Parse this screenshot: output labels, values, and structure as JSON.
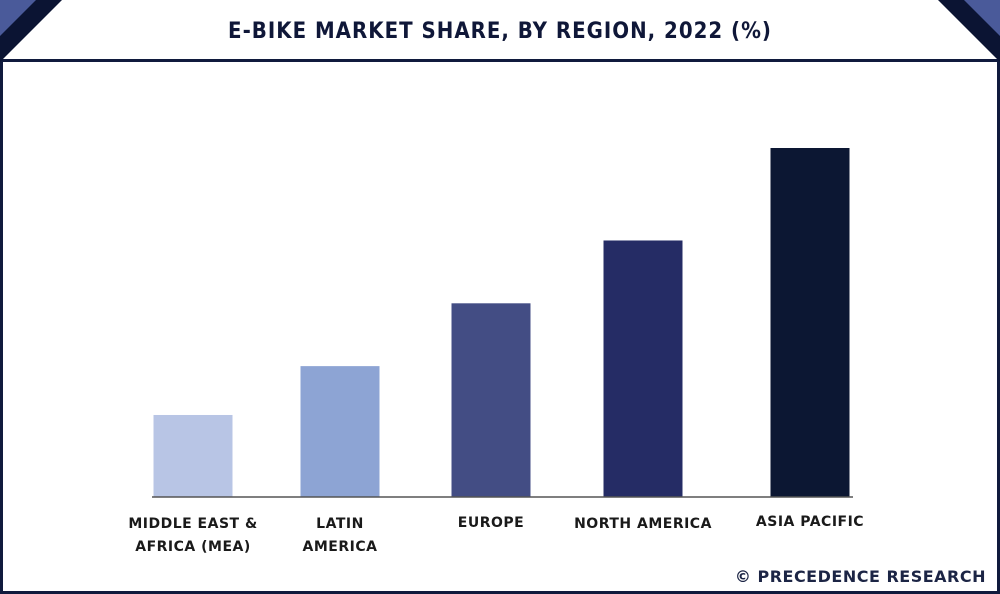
{
  "header": {
    "title": "E-BIKE MARKET SHARE, BY REGION, 2022 (%)"
  },
  "footer": {
    "credit": "© PRECEDENCE RESEARCH"
  },
  "colors": {
    "frame": "#101a3d",
    "corner_light": "#4a5a9a",
    "corner_dark": "#0b1433"
  },
  "chart_data": {
    "type": "bar",
    "title": "E-BIKE MARKET SHARE, BY REGION, 2022 (%)",
    "categories": [
      [
        "MIDDLE EAST &",
        "AFRICA (MEA)"
      ],
      [
        "LATIN",
        "AMERICA"
      ],
      [
        "EUROPE"
      ],
      [
        "NORTH AMERICA"
      ],
      [
        "ASIA PACIFIC"
      ]
    ],
    "values": [
      23.5,
      37.5,
      55.5,
      73.5,
      100
    ],
    "value_scale": "relative (no axis values shown)",
    "bar_colors": [
      "#b8c5e5",
      "#8da4d4",
      "#434d84",
      "#252c65",
      "#0c1733"
    ],
    "ylim": [
      0,
      100
    ],
    "grid": false,
    "legend": "none"
  }
}
